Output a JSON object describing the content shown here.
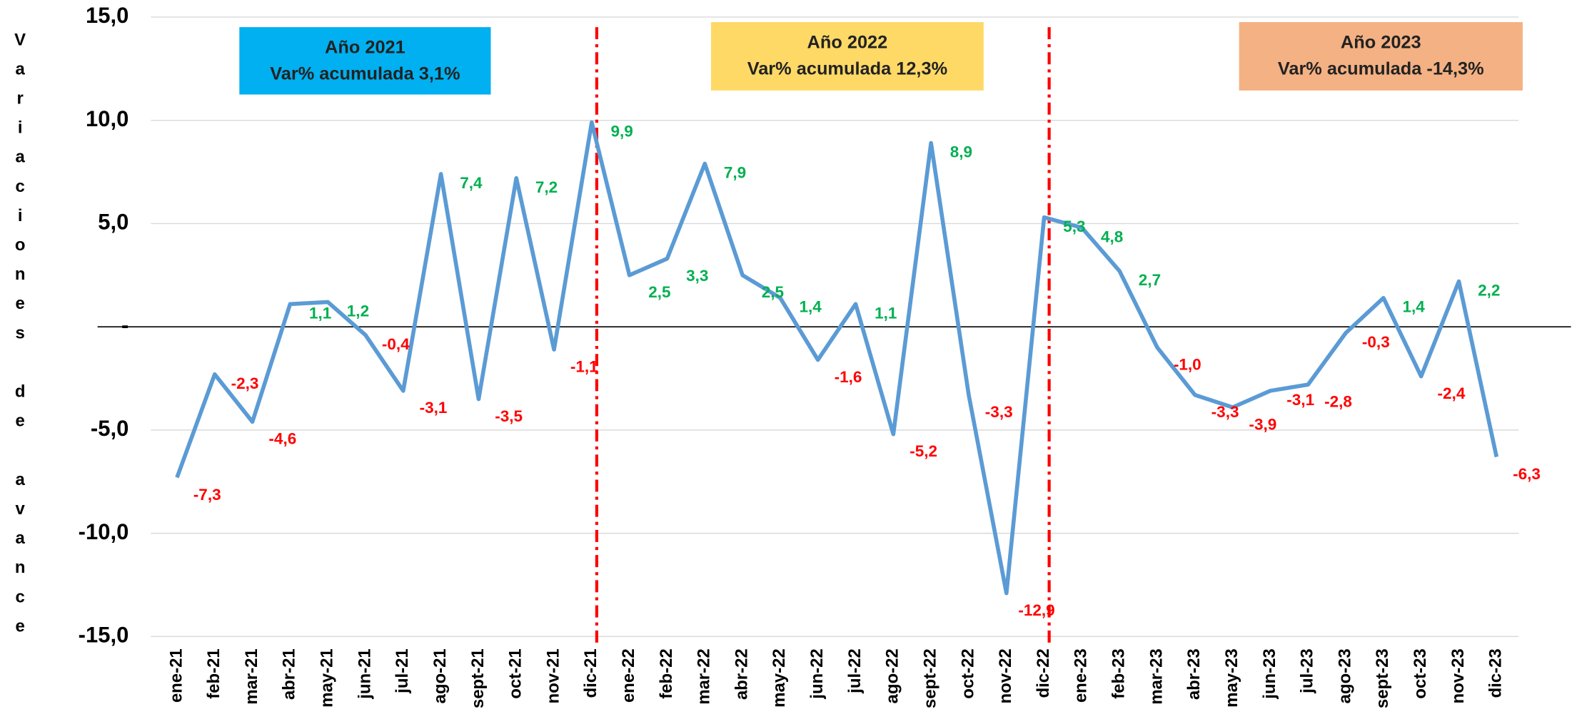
{
  "chart_data": {
    "type": "line",
    "y_label": "Variaciones de avance",
    "categories": [
      "ene-21",
      "feb-21",
      "mar-21",
      "abr-21",
      "may-21",
      "jun-21",
      "jul-21",
      "ago-21",
      "sept-21",
      "oct-21",
      "nov-21",
      "dic-21",
      "ene-22",
      "feb-22",
      "mar-22",
      "abr-22",
      "may-22",
      "jun-22",
      "jul-22",
      "ago-22",
      "sept-22",
      "oct-22",
      "nov-22",
      "dic-22",
      "ene-23",
      "feb-23",
      "mar-23",
      "abr-23",
      "may-23",
      "jun-23",
      "jul-23",
      "ago-23",
      "sept-23",
      "oct-23",
      "nov-23",
      "dic-23"
    ],
    "values": [
      -7.3,
      -2.3,
      -4.6,
      1.1,
      1.2,
      -0.4,
      -3.1,
      7.4,
      -3.5,
      7.2,
      -1.1,
      9.9,
      2.5,
      3.3,
      7.9,
      2.5,
      1.4,
      -1.6,
      1.1,
      -5.2,
      8.9,
      -3.3,
      -12.9,
      5.3,
      4.8,
      2.7,
      -1.0,
      -3.3,
      -3.9,
      -3.1,
      -2.8,
      -0.3,
      1.4,
      -2.4,
      2.2,
      -6.3
    ],
    "value_labels": [
      "-7,3",
      "-2,3",
      "-4,6",
      "1,1",
      "1,2",
      "-0,4",
      "-3,1",
      "7,4",
      "-3,5",
      "7,2",
      "-1,1",
      "9,9",
      "2,5",
      "3,3",
      "7,9",
      "2,5",
      "1,4",
      "-1,6",
      "1,1",
      "-5,2",
      "8,9",
      "-3,3",
      "-12,9",
      "5,3",
      "4,8",
      "2,7",
      "-1,0",
      "-3,3",
      "-3,9",
      "-3,1",
      "-2,8",
      "-0,3",
      "1,4",
      "-2,4",
      "2,2",
      "-6,3"
    ],
    "color": "#5b9bd5",
    "positive_label_color": "#00b050",
    "negative_label_color": "#ff0000",
    "separator_color": "#ff0000",
    "separators_at": [
      "dic-21",
      "dic-22"
    ],
    "ylim": [
      -15,
      15
    ],
    "yticks": [
      {
        "value": 15,
        "label": "15,0"
      },
      {
        "value": 10,
        "label": "10,0"
      },
      {
        "value": 5,
        "label": "5,0"
      },
      {
        "value": 0,
        "label": "-"
      },
      {
        "value": -5,
        "label": "-5,0"
      },
      {
        "value": -10,
        "label": "-10,0"
      },
      {
        "value": -15,
        "label": "-15,0"
      }
    ],
    "grid": true,
    "annotations": [
      {
        "title": "Año 2021",
        "text": "Var% acumulada  3,1%",
        "color": "#00b0f0"
      },
      {
        "title": "Año 2022",
        "text": "Var% acumulada  12,3%",
        "color": "#ffd966"
      },
      {
        "title": "Año 2023",
        "text": "Var% acumulada   -14,3%",
        "color": "#f4b183"
      }
    ]
  }
}
